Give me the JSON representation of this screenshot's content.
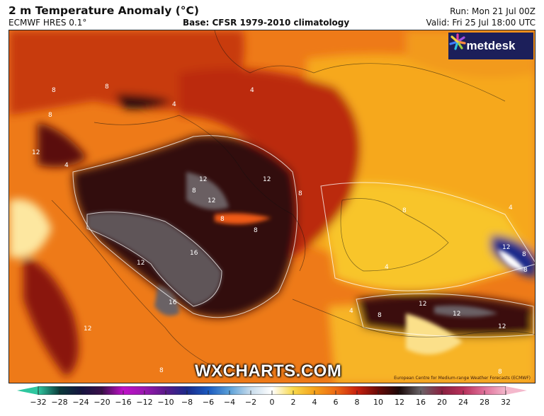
{
  "header": {
    "title": "2 m Temperature Anomaly (°C)",
    "model": "ECMWF HRES 0.1°",
    "base": "Base: CFSR 1979-2010 climatology",
    "run": "Run: Mon 21 Jul 00Z",
    "valid": "Valid: Fri 25 Jul 18:00 UTC"
  },
  "logo": {
    "text": "metdesk"
  },
  "watermark": "WXCHARTS.COM",
  "attribution": "European Centre for Medium-range Weather Forecasts (ECMWF)",
  "contour_labels": [
    "8",
    "8",
    "8",
    "12",
    "4",
    "12",
    "12",
    "8",
    "12",
    "8",
    "8",
    "16",
    "12",
    "16",
    "12",
    "8",
    "4",
    "4",
    "4",
    "8",
    "12",
    "12",
    "12",
    "8",
    "8",
    "12",
    "8",
    "4",
    "8",
    "8",
    "4"
  ],
  "colorbar": {
    "unit": "°C",
    "ticks": [
      "−32",
      "−28",
      "−24",
      "−20",
      "−16",
      "−12",
      "−10",
      "−8",
      "−6",
      "−4",
      "−2",
      "0",
      "2",
      "4",
      "6",
      "8",
      "10",
      "12",
      "16",
      "20",
      "24",
      "28",
      "32"
    ],
    "colors": [
      "#2fc79f",
      "#0a3a3a",
      "#151540",
      "#3a0f4a",
      "#c010c8",
      "#9a18b0",
      "#5a1a8a",
      "#1a2a8a",
      "#1a5ac0",
      "#5aa0d8",
      "#c8dcec",
      "#ffffff",
      "#f8d84a",
      "#f5a21a",
      "#ee6a14",
      "#c8200e",
      "#6a0a08",
      "#1a0808",
      "#6a6468",
      "#8a2040",
      "#b8305a",
      "#e0709a",
      "#f4b8cc"
    ]
  }
}
